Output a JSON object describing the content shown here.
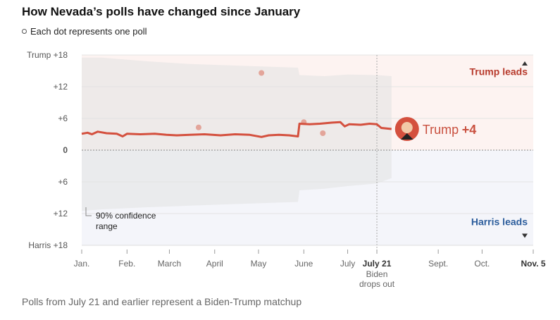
{
  "title": "How Nevada’s polls have changed since January",
  "legend": {
    "text": "Each dot represents one poll"
  },
  "footnote": "Polls from July 21 and earlier represent a Biden-Trump matchup",
  "chart_data": {
    "type": "line",
    "y_axis": {
      "range": [
        -18,
        18
      ],
      "ticks": [
        {
          "value": 18,
          "label": "Trump +18"
        },
        {
          "value": 12,
          "label": "+12"
        },
        {
          "value": 6,
          "label": "+6"
        },
        {
          "value": 0,
          "label": "0"
        },
        {
          "value": -6,
          "label": "+6"
        },
        {
          "value": -12,
          "label": "+12"
        },
        {
          "value": -18,
          "label": "Harris +18"
        }
      ]
    },
    "x_axis": {
      "range": [
        "2024-01-01",
        "2024-11-05"
      ],
      "ticks": [
        {
          "date": "2024-01-01",
          "label": "Jan.",
          "bold": false
        },
        {
          "date": "2024-02-01",
          "label": "Feb.",
          "bold": false
        },
        {
          "date": "2024-03-01",
          "label": "March",
          "bold": false
        },
        {
          "date": "2024-04-01",
          "label": "April",
          "bold": false
        },
        {
          "date": "2024-05-01",
          "label": "May",
          "bold": false
        },
        {
          "date": "2024-06-01",
          "label": "June",
          "bold": false
        },
        {
          "date": "2024-07-01",
          "label": "July",
          "bold": false
        },
        {
          "date": "2024-07-21",
          "label": "July 21",
          "bold": true
        },
        {
          "date": "2024-09-01",
          "label": "Sept.",
          "bold": false
        },
        {
          "date": "2024-10-01",
          "label": "Oct.",
          "bold": false
        },
        {
          "date": "2024-11-05",
          "label": "Nov. 5",
          "bold": true
        }
      ]
    },
    "series": [
      {
        "values": [
          {
            "x": "2024-01-01",
            "y": 3.1
          },
          {
            "x": "2024-01-05",
            "y": 3.3
          },
          {
            "x": "2024-01-08",
            "y": 3.0
          },
          {
            "x": "2024-01-12",
            "y": 3.5
          },
          {
            "x": "2024-01-18",
            "y": 3.2
          },
          {
            "x": "2024-01-25",
            "y": 3.1
          },
          {
            "x": "2024-01-29",
            "y": 2.6
          },
          {
            "x": "2024-02-01",
            "y": 3.1
          },
          {
            "x": "2024-02-10",
            "y": 3.0
          },
          {
            "x": "2024-02-20",
            "y": 3.1
          },
          {
            "x": "2024-02-28",
            "y": 2.9
          },
          {
            "x": "2024-03-06",
            "y": 2.8
          },
          {
            "x": "2024-03-15",
            "y": 2.9
          },
          {
            "x": "2024-03-25",
            "y": 3.0
          },
          {
            "x": "2024-04-05",
            "y": 2.8
          },
          {
            "x": "2024-04-15",
            "y": 3.0
          },
          {
            "x": "2024-04-25",
            "y": 2.9
          },
          {
            "x": "2024-05-03",
            "y": 2.5
          },
          {
            "x": "2024-05-08",
            "y": 2.8
          },
          {
            "x": "2024-05-15",
            "y": 2.9
          },
          {
            "x": "2024-05-22",
            "y": 2.8
          },
          {
            "x": "2024-05-28",
            "y": 2.6
          },
          {
            "x": "2024-05-29",
            "y": 5.0
          },
          {
            "x": "2024-06-05",
            "y": 4.9
          },
          {
            "x": "2024-06-12",
            "y": 5.0
          },
          {
            "x": "2024-06-20",
            "y": 5.2
          },
          {
            "x": "2024-06-26",
            "y": 5.3
          },
          {
            "x": "2024-06-29",
            "y": 4.5
          },
          {
            "x": "2024-07-02",
            "y": 4.9
          },
          {
            "x": "2024-07-10",
            "y": 4.8
          },
          {
            "x": "2024-07-16",
            "y": 5.0
          },
          {
            "x": "2024-07-21",
            "y": 4.9
          },
          {
            "x": "2024-07-24",
            "y": 4.2
          },
          {
            "x": "2024-07-31",
            "y": 4.0
          }
        ]
      }
    ],
    "confidence_band": {
      "label": "90% confidence range",
      "values": [
        {
          "x": "2024-01-01",
          "hi": 17.5,
          "lo": -11.5
        },
        {
          "x": "2024-01-15",
          "hi": 17.5,
          "lo": -11.2
        },
        {
          "x": "2024-02-15",
          "hi": 16.8,
          "lo": -10.8
        },
        {
          "x": "2024-03-15",
          "hi": 16.3,
          "lo": -10.5
        },
        {
          "x": "2024-04-15",
          "hi": 16.0,
          "lo": -10.2
        },
        {
          "x": "2024-05-28",
          "hi": 15.6,
          "lo": -9.8
        },
        {
          "x": "2024-05-29",
          "hi": 14.2,
          "lo": -7.6
        },
        {
          "x": "2024-06-15",
          "hi": 14.0,
          "lo": -7.3
        },
        {
          "x": "2024-07-01",
          "hi": 14.3,
          "lo": -6.8
        },
        {
          "x": "2024-07-21",
          "hi": 14.2,
          "lo": -6.3
        },
        {
          "x": "2024-07-31",
          "hi": 14.0,
          "lo": -5.3
        }
      ]
    },
    "polls": [
      {
        "x": "2024-03-21",
        "y": 4.3
      },
      {
        "x": "2024-05-03",
        "y": 14.6
      },
      {
        "x": "2024-06-01",
        "y": 5.3
      },
      {
        "x": "2024-06-14",
        "y": 3.2
      }
    ],
    "leads": {
      "trump": "Trump leads",
      "harris": "Harris leads"
    },
    "confidence_label_lines": [
      "90% confidence",
      "range"
    ],
    "event": {
      "x": "2024-07-21",
      "label_lines": [
        "Biden",
        "drops out"
      ]
    },
    "current": {
      "x": "2024-07-31",
      "y": 4,
      "name": "Trump",
      "value": "+4"
    },
    "colors": {
      "line": "#d4503e",
      "dots": "#e0998c",
      "band": "#e2e2e2",
      "trump_bg": "#fdf3f1",
      "harris_bg": "#f4f5fa",
      "trump_text": "#b73a2c",
      "harris_text": "#2c5d9c"
    }
  }
}
